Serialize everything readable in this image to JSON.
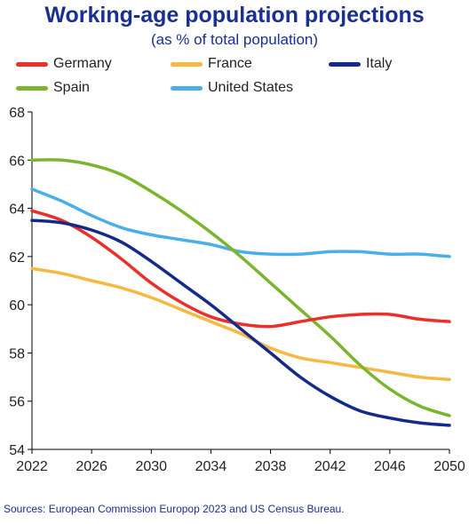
{
  "header": {
    "title": "Working-age population projections",
    "subtitle": "(as % of total population)"
  },
  "footer": {
    "source": "Sources: European Commission Europop 2023 and US Census Bureau."
  },
  "chart_data": {
    "type": "line",
    "title": "Working-age population projections",
    "subtitle": "(as % of total population)",
    "xlabel": "",
    "ylabel": "",
    "x": [
      2022,
      2024,
      2026,
      2028,
      2030,
      2032,
      2034,
      2036,
      2038,
      2040,
      2042,
      2044,
      2046,
      2048,
      2050
    ],
    "xlim": [
      2022,
      2050
    ],
    "ylim": [
      54,
      68
    ],
    "xticks": [
      2022,
      2026,
      2030,
      2034,
      2038,
      2042,
      2046,
      2050
    ],
    "yticks": [
      54,
      56,
      58,
      60,
      62,
      64,
      66,
      68
    ],
    "grid": false,
    "legend_position": "top",
    "series": [
      {
        "name": "Germany",
        "color": "#e8312a",
        "values": [
          63.9,
          63.5,
          62.8,
          61.9,
          60.9,
          60.1,
          59.5,
          59.2,
          59.1,
          59.3,
          59.5,
          59.6,
          59.6,
          59.4,
          59.3
        ]
      },
      {
        "name": "France",
        "color": "#f5b942",
        "values": [
          61.5,
          61.3,
          61.0,
          60.7,
          60.3,
          59.8,
          59.3,
          58.8,
          58.2,
          57.8,
          57.6,
          57.4,
          57.2,
          57.0,
          56.9
        ]
      },
      {
        "name": "Italy",
        "color": "#142a8a",
        "values": [
          63.5,
          63.4,
          63.1,
          62.6,
          61.8,
          60.9,
          60.0,
          59.0,
          58.0,
          57.0,
          56.2,
          55.6,
          55.3,
          55.1,
          55.0
        ]
      },
      {
        "name": "Spain",
        "color": "#7ab530",
        "values": [
          66.0,
          66.0,
          65.8,
          65.4,
          64.7,
          63.9,
          63.0,
          62.0,
          60.9,
          59.8,
          58.7,
          57.5,
          56.5,
          55.8,
          55.4
        ]
      },
      {
        "name": "United States",
        "color": "#4aaee8",
        "values": [
          64.8,
          64.3,
          63.7,
          63.2,
          62.9,
          62.7,
          62.5,
          62.2,
          62.1,
          62.1,
          62.2,
          62.2,
          62.1,
          62.1,
          62.0
        ]
      }
    ]
  }
}
